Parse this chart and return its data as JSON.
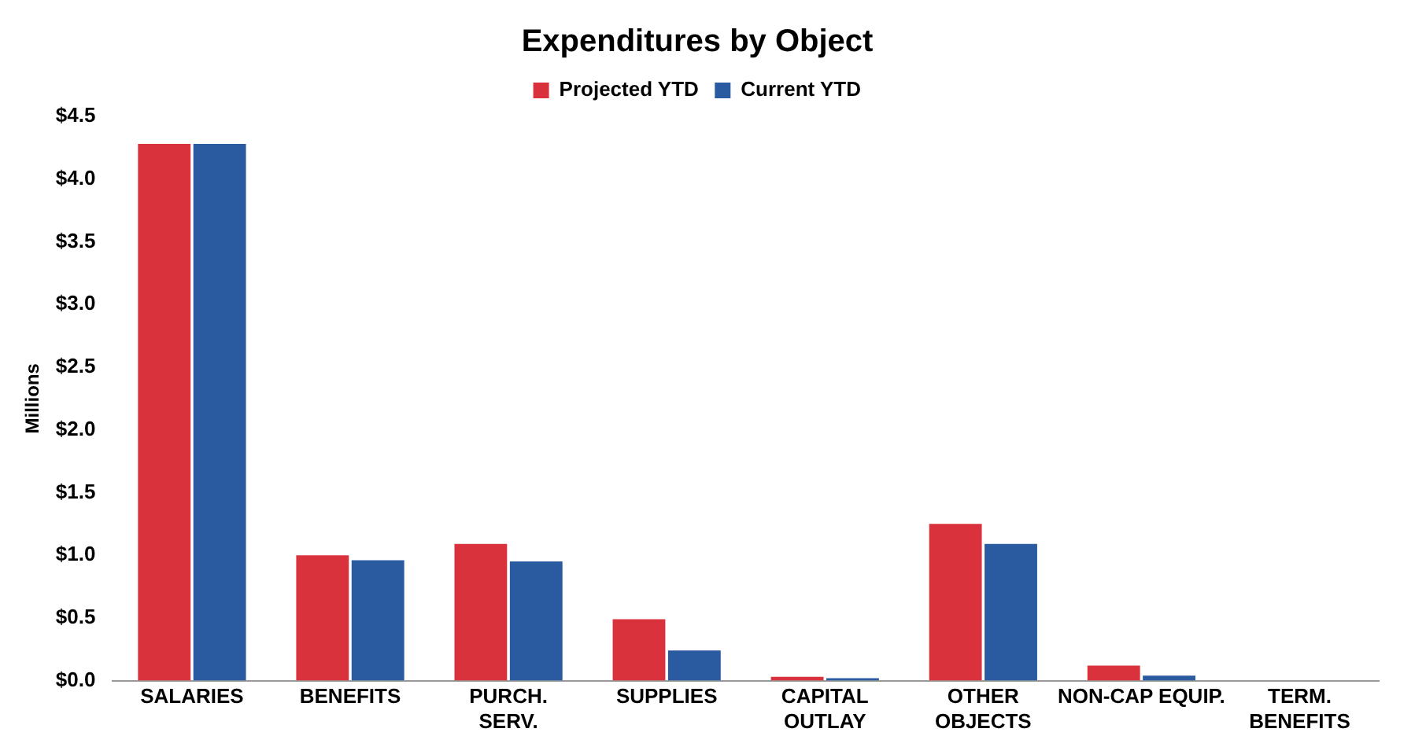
{
  "chart_data": {
    "type": "bar",
    "title": "Expenditures by Object",
    "ylabel": "Millions",
    "categories": [
      "SALARIES",
      "BENEFITS",
      "PURCH. SERV.",
      "SUPPLIES",
      "CAPITAL OUTLAY",
      "OTHER OBJECTS",
      "NON-CAP EQUIP.",
      "TERM. BENEFITS"
    ],
    "series": [
      {
        "name": "Projected YTD",
        "color": "#d9323c",
        "values": [
          4.28,
          1.0,
          1.09,
          0.49,
          0.03,
          1.25,
          0.12,
          0
        ]
      },
      {
        "name": "Current YTD",
        "color": "#2a5aa0",
        "values": [
          4.28,
          0.96,
          0.95,
          0.24,
          0.02,
          1.09,
          0.04,
          0
        ]
      }
    ],
    "ylim": [
      0,
      4.5
    ],
    "yticks": [
      {
        "value": 0,
        "label": "$0.0"
      },
      {
        "value": 0.5,
        "label": "$0.5"
      },
      {
        "value": 1,
        "label": "$1.0"
      },
      {
        "value": 1.5,
        "label": "$1.5"
      },
      {
        "value": 2,
        "label": "$2.0"
      },
      {
        "value": 2.5,
        "label": "$2.5"
      },
      {
        "value": 3,
        "label": "$3.0"
      },
      {
        "value": 3.5,
        "label": "$3.5"
      },
      {
        "value": 4,
        "label": "$4.0"
      },
      {
        "value": 4.5,
        "label": "$4.5"
      }
    ],
    "grid": false,
    "legend": "top"
  }
}
